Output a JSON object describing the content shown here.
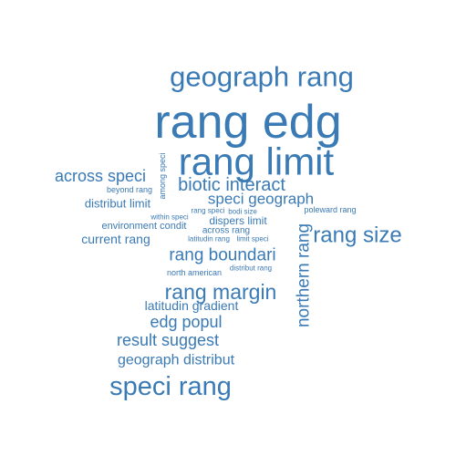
{
  "chart_data": {
    "type": "wordcloud",
    "color": "#3a7ab5",
    "words": [
      {
        "text": "rang edg",
        "weight": 100
      },
      {
        "text": "rang limit",
        "weight": 82
      },
      {
        "text": "geograph rang",
        "weight": 62
      },
      {
        "text": "speci rang",
        "weight": 58
      },
      {
        "text": "rang size",
        "weight": 48
      },
      {
        "text": "rang margin",
        "weight": 46
      },
      {
        "text": "biotic interact",
        "weight": 40
      },
      {
        "text": "northern rang",
        "weight": 40
      },
      {
        "text": "rang boundari",
        "weight": 38
      },
      {
        "text": "result suggest",
        "weight": 36
      },
      {
        "text": "edg popul",
        "weight": 36
      },
      {
        "text": "across speci",
        "weight": 34
      },
      {
        "text": "speci geograph",
        "weight": 32
      },
      {
        "text": "geograph distribut",
        "weight": 32
      },
      {
        "text": "latitudin gradient",
        "weight": 28
      },
      {
        "text": "current rang",
        "weight": 28
      },
      {
        "text": "distribut limit",
        "weight": 26
      },
      {
        "text": "dispers limit",
        "weight": 24
      },
      {
        "text": "environment condit",
        "weight": 22
      },
      {
        "text": "across rang",
        "weight": 20
      },
      {
        "text": "beyond rang",
        "weight": 18
      },
      {
        "text": "poleward rang",
        "weight": 18
      },
      {
        "text": "north american",
        "weight": 18
      },
      {
        "text": "among speci",
        "weight": 16
      },
      {
        "text": "within speci",
        "weight": 14
      },
      {
        "text": "rang speci",
        "weight": 14
      },
      {
        "text": "bodi size",
        "weight": 14
      },
      {
        "text": "distribut rang",
        "weight": 14
      },
      {
        "text": "latitudin rang",
        "weight": 14
      },
      {
        "text": "limit speci",
        "weight": 14
      }
    ]
  }
}
